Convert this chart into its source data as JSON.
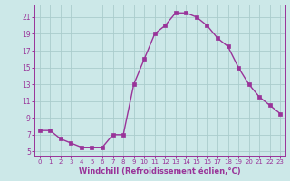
{
  "hours": [
    0,
    1,
    2,
    3,
    4,
    5,
    6,
    7,
    8,
    9,
    10,
    11,
    12,
    13,
    14,
    15,
    16,
    17,
    18,
    19,
    20,
    21,
    22,
    23
  ],
  "values": [
    7.5,
    7.5,
    6.5,
    6.0,
    5.5,
    5.5,
    5.5,
    7.0,
    7.0,
    13.0,
    16.0,
    19.0,
    20.0,
    21.5,
    21.5,
    21.0,
    20.0,
    18.5,
    17.5,
    15.0,
    13.0,
    11.5,
    10.5,
    9.5
  ],
  "line_color": "#993399",
  "marker": "s",
  "markersize": 2.5,
  "linewidth": 1.0,
  "bg_color": "#cce8e8",
  "grid_color": "#aacccc",
  "xlabel": "Windchill (Refroidissement éolien,°C)",
  "xlabel_color": "#993399",
  "tick_color": "#993399",
  "yticks": [
    5,
    7,
    9,
    11,
    13,
    15,
    17,
    19,
    21
  ],
  "xticks": [
    0,
    1,
    2,
    3,
    4,
    5,
    6,
    7,
    8,
    9,
    10,
    11,
    12,
    13,
    14,
    15,
    16,
    17,
    18,
    19,
    20,
    21,
    22,
    23
  ],
  "ylim": [
    4.5,
    22.5
  ],
  "xlim": [
    -0.5,
    23.5
  ]
}
